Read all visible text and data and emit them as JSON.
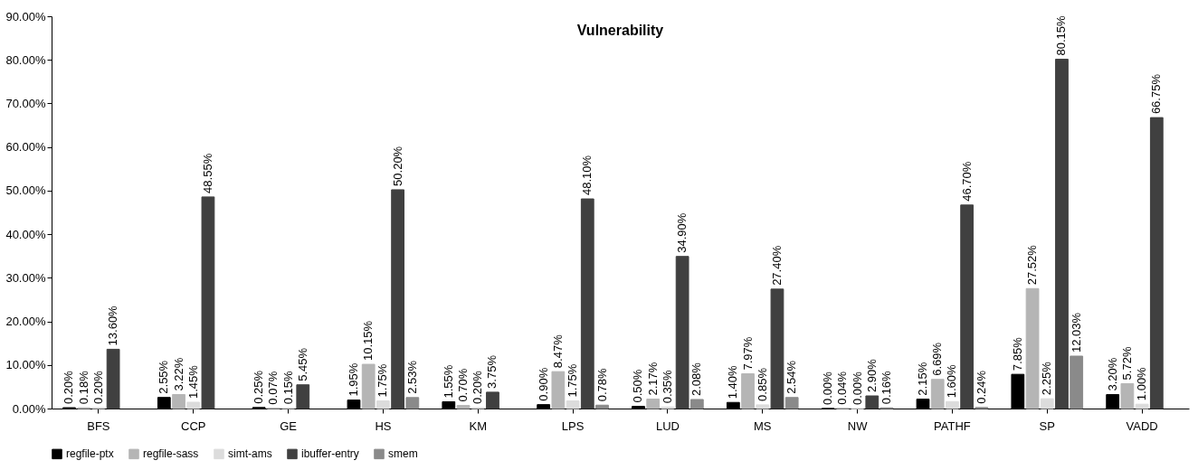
{
  "chart_data": {
    "type": "bar",
    "title": "Vulnerability",
    "categories": [
      "BFS",
      "CCP",
      "GE",
      "HS",
      "KM",
      "LPS",
      "LUD",
      "MS",
      "NW",
      "PATHF",
      "SP",
      "VADD"
    ],
    "series": [
      {
        "name": "regfile-ptx",
        "color": "#000000",
        "values": [
          0.2,
          2.55,
          0.25,
          1.95,
          1.55,
          0.9,
          0.5,
          1.4,
          0.0,
          2.15,
          7.85,
          3.2
        ],
        "value_labels": [
          "0.20%",
          "2.55%",
          "0.25%",
          "1.95%",
          "1.55%",
          "0.90%",
          "0.50%",
          "1.40%",
          "0.00%",
          "2.15%",
          "7.85%",
          "3.20%"
        ]
      },
      {
        "name": "regfile-sass",
        "color": "#b5b5b5",
        "values": [
          0.18,
          3.22,
          0.07,
          10.15,
          0.7,
          8.47,
          2.17,
          7.97,
          0.04,
          6.69,
          27.52,
          5.72
        ],
        "value_labels": [
          "0.18%",
          "3.22%",
          "0.07%",
          "10.15%",
          "0.70%",
          "8.47%",
          "2.17%",
          "7.97%",
          "0.04%",
          "6.69%",
          "27.52%",
          "5.72%"
        ]
      },
      {
        "name": "simt-ams",
        "color": "#dcdcdc",
        "values": [
          0.2,
          1.45,
          0.15,
          1.75,
          0.2,
          1.75,
          0.35,
          0.85,
          0.0,
          1.6,
          2.25,
          1.0
        ],
        "value_labels": [
          "0.20%",
          "1.45%",
          "0.15%",
          "1.75%",
          "0.20%",
          "1.75%",
          "0.35%",
          "0.85%",
          "0.00%",
          "1.60%",
          "2.25%",
          "1.00%"
        ]
      },
      {
        "name": "ibuffer-entry",
        "color": "#404040",
        "values": [
          13.6,
          48.55,
          5.45,
          50.2,
          3.75,
          48.1,
          34.9,
          27.4,
          2.9,
          46.7,
          80.15,
          66.75
        ],
        "value_labels": [
          "13.60%",
          "48.55%",
          "5.45%",
          "50.20%",
          "3.75%",
          "48.10%",
          "34.90%",
          "27.40%",
          "2.90%",
          "46.70%",
          "80.15%",
          "66.75%"
        ]
      },
      {
        "name": "smem",
        "color": "#8a8a8a",
        "values": [
          null,
          null,
          null,
          2.53,
          null,
          0.78,
          2.08,
          2.54,
          0.16,
          0.24,
          12.03,
          null
        ],
        "value_labels": [
          null,
          null,
          null,
          "2.53%",
          null,
          "0.78%",
          "2.08%",
          "2.54%",
          "0.16%",
          "0.24%",
          "12.03%",
          null
        ]
      }
    ],
    "ylim": [
      0,
      90
    ],
    "yticks": [
      {
        "value": 0,
        "label": "0.00%"
      },
      {
        "value": 10,
        "label": "10.00%"
      },
      {
        "value": 20,
        "label": "20.00%"
      },
      {
        "value": 30,
        "label": "30.00%"
      },
      {
        "value": 40,
        "label": "40.00%"
      },
      {
        "value": 50,
        "label": "50.00%"
      },
      {
        "value": 60,
        "label": "60.00%"
      },
      {
        "value": 70,
        "label": "70.00%"
      },
      {
        "value": 80,
        "label": "80.00%"
      },
      {
        "value": 90,
        "label": "90.00%"
      }
    ],
    "grid": false,
    "legend": "bottom"
  }
}
